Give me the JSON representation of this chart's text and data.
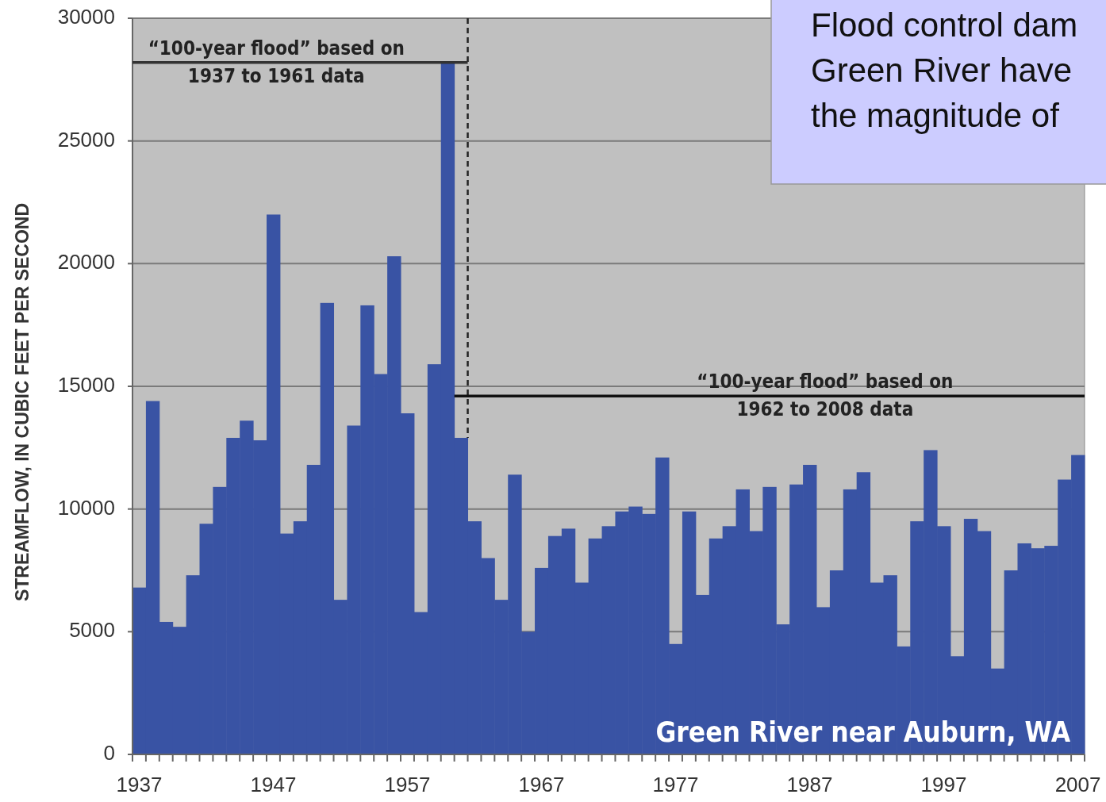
{
  "chart_data": {
    "type": "bar",
    "ylabel": "STREAMFLOW, IN CUBIC FEET PER SECOND",
    "categories": [
      "1937",
      null,
      null,
      null,
      null,
      null,
      null,
      null,
      null,
      null,
      "1947",
      null,
      null,
      null,
      null,
      null,
      null,
      null,
      null,
      null,
      "1957",
      null,
      null,
      null,
      null,
      null,
      null,
      null,
      null,
      null,
      "1967",
      null,
      null,
      null,
      null,
      null,
      null,
      null,
      null,
      null,
      "1977",
      null,
      null,
      null,
      null,
      null,
      null,
      null,
      null,
      null,
      "1987",
      null,
      null,
      null,
      null,
      null,
      null,
      null,
      null,
      null,
      "1997",
      null,
      null,
      null,
      null,
      null,
      null,
      null,
      null,
      null,
      "2007"
    ],
    "values": [
      6800,
      14400,
      5400,
      5200,
      7300,
      9400,
      10900,
      12900,
      13600,
      12800,
      22000,
      9000,
      9500,
      11800,
      18400,
      6300,
      13400,
      18300,
      15500,
      20300,
      13900,
      5800,
      15900,
      28200,
      12900,
      9500,
      8000,
      6300,
      11400,
      5000,
      7600,
      8900,
      9200,
      7000,
      8800,
      9300,
      9900,
      10100,
      9800,
      12100,
      4500,
      9900,
      6500,
      8800,
      9300,
      10800,
      9100,
      10900,
      5300,
      11000,
      11800,
      6000,
      7500,
      10800,
      11500,
      7000,
      7300,
      4400,
      9500,
      12400,
      9300,
      4000,
      9600,
      9100,
      3500,
      7500,
      8600,
      8400,
      8500,
      11200,
      12200
    ],
    "color": "#3953a4",
    "ylim": [
      0,
      30000
    ],
    "yticks": [
      0,
      5000,
      10000,
      15000,
      20000,
      25000,
      30000
    ],
    "grid": "y",
    "ref_lines": [
      {
        "axis": "y",
        "value": 28200,
        "label": "“100-year flood” based on\n1937 to 1961 data",
        "color": "#333333"
      },
      {
        "axis": "y",
        "value": 14600,
        "label": "“100-year flood” based on\n1962 to 2008 data",
        "color": "#111111"
      }
    ],
    "annotations": [
      "Flood control dam\nGreen River have\nthe magnitude of",
      "Green River near Auburn, WA"
    ]
  }
}
